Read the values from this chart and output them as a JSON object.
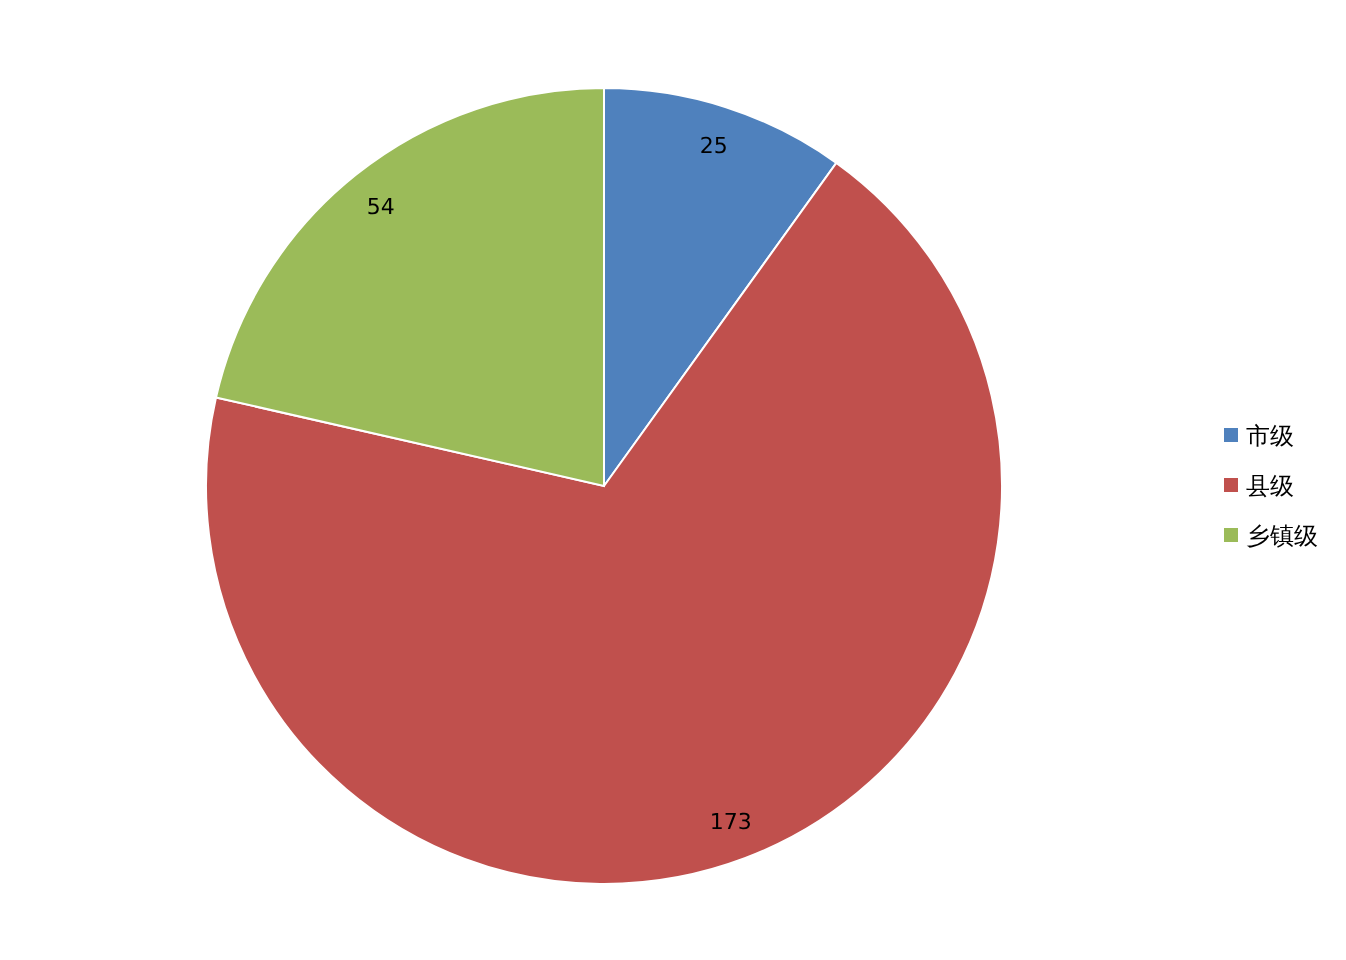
{
  "chart_data": {
    "type": "pie",
    "categories": [
      "市级",
      "县级",
      "乡镇级"
    ],
    "values": [
      25,
      173,
      54
    ],
    "colors": [
      "#4f81bd",
      "#c0504d",
      "#9bbb59"
    ],
    "data_labels": true,
    "legend": "right"
  }
}
